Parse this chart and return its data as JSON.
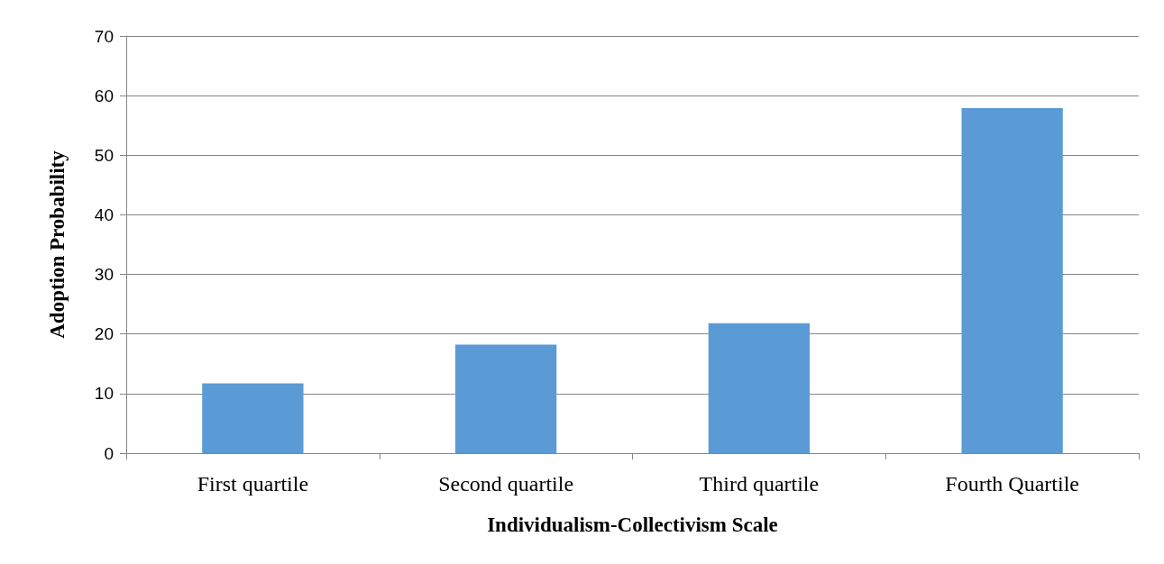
{
  "chart_data": {
    "type": "bar",
    "xlabel": "Individualism-Collectivism Scale",
    "ylabel": "Adoption Probability",
    "categories": [
      "First quartile",
      "Second quartile",
      "Third quartile",
      "Fourth Quartile"
    ],
    "values": [
      11.7,
      18.2,
      21.8,
      57.9
    ],
    "color": "#5b9bd5",
    "ylim": [
      0,
      70
    ],
    "yticks": [
      0,
      10,
      20,
      30,
      40,
      50,
      60,
      70
    ],
    "grid": "y"
  }
}
